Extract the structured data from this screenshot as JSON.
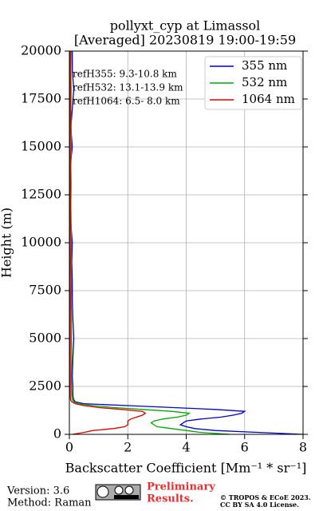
{
  "chart_data": {
    "type": "profile",
    "title": [
      "pollyxt_cyp at Limassol",
      "[Averaged] 20230819 19:00-19:59"
    ],
    "xlabel": "Backscatter Coefficient [Mm⁻¹ * sr⁻¹]",
    "ylabel": "Height (m)",
    "xlim": [
      0,
      8
    ],
    "xticks": [
      0,
      2,
      4,
      6,
      8
    ],
    "ylim": [
      0,
      20000
    ],
    "yticks": [
      0,
      2500,
      5000,
      7500,
      10000,
      12500,
      15000,
      17500,
      20000
    ],
    "grid": true,
    "legend": "upper right",
    "annotations": [
      "refH355:  9.3-10.8 km",
      "refH532: 13.1-13.9 km",
      "refH1064:  6.5- 8.0 km"
    ],
    "heights": [
      0,
      100,
      200,
      300,
      400,
      500,
      600,
      700,
      800,
      900,
      1000,
      1100,
      1200,
      1300,
      1400,
      1500,
      1600,
      1700,
      1800,
      2000,
      2500,
      3000,
      4000,
      5000,
      6000,
      7000,
      8000,
      9000,
      10000,
      11000,
      12000,
      13000,
      14000,
      15000,
      16000,
      17000,
      18000,
      19000,
      20000
    ],
    "series": [
      {
        "name": "355 nm",
        "color": "#0000cc",
        "values": [
          8,
          6.5,
          5,
          4.3,
          4,
          3.8,
          3.9,
          4,
          4.5,
          5.2,
          5.6,
          5.9,
          6,
          5,
          3.5,
          2,
          0.5,
          0.2,
          0.15,
          0.12,
          0.12,
          0.1,
          0.12,
          0.15,
          0.12,
          0.1,
          0.1,
          0.08,
          0.1,
          0.05,
          0.05,
          0.05,
          0.03,
          0.1,
          0.05,
          0.1,
          0.15,
          0.1,
          0.1
        ]
      },
      {
        "name": "532 nm",
        "color": "#00aa00",
        "values": [
          5.5,
          4.5,
          4,
          3.5,
          3,
          2.9,
          2.8,
          2.9,
          3.2,
          3.7,
          4,
          4.1,
          3.5,
          2.5,
          1.5,
          0.8,
          0.3,
          0.15,
          0.1,
          0.08,
          0.07,
          0.07,
          0.08,
          0.07,
          0.07,
          0.06,
          0.07,
          0.06,
          0.07,
          0.06,
          0.05,
          0.06,
          0.05,
          0.07,
          0.06,
          0.05,
          0.06,
          0.05,
          0.06
        ]
      },
      {
        "name": "1064 nm",
        "color": "#dd0000",
        "values": [
          0.1,
          0.5,
          0.8,
          1.5,
          1.9,
          2,
          2,
          2,
          2.1,
          2.3,
          2.5,
          2.6,
          2.5,
          1.8,
          1,
          0.5,
          0.2,
          0.08,
          0.04,
          0.03,
          0.03,
          0.03,
          0.03,
          0.03,
          0.03,
          0.03,
          0.03,
          0.03,
          0.03,
          0.03,
          0.03,
          0.03,
          0.03,
          0.03,
          0.03,
          0.03,
          0.03,
          0.03,
          0.03
        ]
      }
    ]
  },
  "footer": {
    "version": "Version: 3.6",
    "method": "Method: Raman",
    "notice": [
      "Preliminary",
      "Results."
    ],
    "copyright": [
      "© TROPOS & ECoE 2023.",
      "CC BY SA 4.0 License."
    ]
  }
}
